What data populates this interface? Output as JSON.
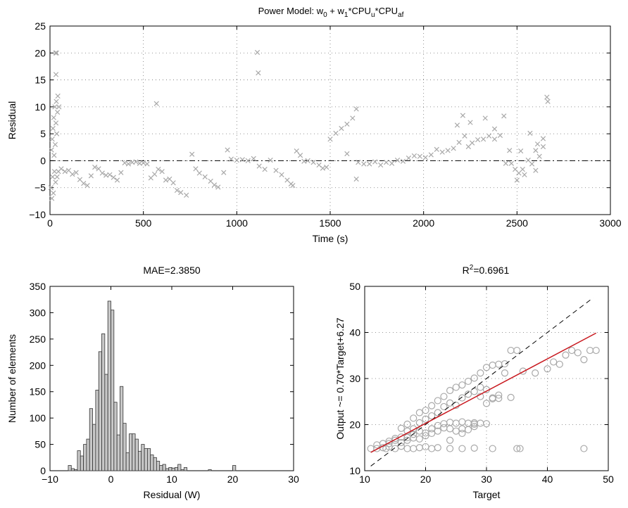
{
  "chart_data": [
    {
      "type": "scatter",
      "title_main": "Power Model: w",
      "title_sub0": "0",
      "title_mid": " + w",
      "title_sub1": "1",
      "title_mid2": "*CPU",
      "title_sub2": "u",
      "title_mid3": "*CPU",
      "title_sub3": "af",
      "xlabel": "Time (s)",
      "ylabel": "Residual",
      "xlim": [
        0,
        3000
      ],
      "ylim": [
        -10,
        25
      ],
      "xticks": [
        "0",
        "500",
        "1000",
        "1500",
        "2000",
        "2500",
        "3000"
      ],
      "yticks": [
        "−10",
        "−5",
        "0",
        "5",
        "10",
        "15",
        "20",
        "25"
      ],
      "grid": true,
      "marker": "x",
      "color": "#a8a8a8",
      "reference_line_y": 0,
      "points": [
        [
          5,
          -5
        ],
        [
          8,
          2
        ],
        [
          10,
          -7
        ],
        [
          12,
          4
        ],
        [
          14,
          -3
        ],
        [
          16,
          6
        ],
        [
          18,
          -6
        ],
        [
          20,
          8
        ],
        [
          22,
          1
        ],
        [
          24,
          -2
        ],
        [
          26,
          10
        ],
        [
          28,
          3
        ],
        [
          30,
          -4
        ],
        [
          32,
          7
        ],
        [
          34,
          11
        ],
        [
          36,
          5
        ],
        [
          38,
          -3
        ],
        [
          40,
          9
        ],
        [
          42,
          12
        ],
        [
          45,
          -2
        ],
        [
          48,
          10
        ],
        [
          30,
          20
        ],
        [
          35,
          20
        ],
        [
          32,
          16
        ],
        [
          60,
          -1.5
        ],
        [
          80,
          -2
        ],
        [
          100,
          -1.8
        ],
        [
          120,
          -2.5
        ],
        [
          140,
          -2.2
        ],
        [
          160,
          -3.5
        ],
        [
          180,
          -4.2
        ],
        [
          200,
          -4.6
        ],
        [
          220,
          -2.8
        ],
        [
          240,
          -1.2
        ],
        [
          260,
          -1.5
        ],
        [
          280,
          -2.3
        ],
        [
          300,
          -2.7
        ],
        [
          320,
          -2.6
        ],
        [
          340,
          -3.1
        ],
        [
          360,
          -3.6
        ],
        [
          380,
          -2.2
        ],
        [
          400,
          -0.4
        ],
        [
          420,
          -0.6
        ],
        [
          440,
          -0.3
        ],
        [
          460,
          -0.2
        ],
        [
          480,
          -0.5
        ],
        [
          500,
          -0.4
        ],
        [
          520,
          -0.6
        ],
        [
          540,
          -3.2
        ],
        [
          560,
          -2.5
        ],
        [
          570,
          10.6
        ],
        [
          580,
          -1.6
        ],
        [
          600,
          -2.0
        ],
        [
          620,
          -3.6
        ],
        [
          640,
          -3.4
        ],
        [
          660,
          -4.1
        ],
        [
          680,
          -5.5
        ],
        [
          700,
          -5.9
        ],
        [
          730,
          -6.4
        ],
        [
          760,
          1.2
        ],
        [
          780,
          -1.5
        ],
        [
          800,
          -2.3
        ],
        [
          830,
          -3.0
        ],
        [
          860,
          -3.8
        ],
        [
          880,
          -4.5
        ],
        [
          900,
          -4.9
        ],
        [
          930,
          -2.2
        ],
        [
          950,
          2.0
        ],
        [
          970,
          0.3
        ],
        [
          1000,
          0.1
        ],
        [
          1030,
          0.2
        ],
        [
          1060,
          0.0
        ],
        [
          1090,
          0.4
        ],
        [
          1110,
          20.1
        ],
        [
          1115,
          16.3
        ],
        [
          1120,
          -1.0
        ],
        [
          1150,
          -1.6
        ],
        [
          1180,
          0.1
        ],
        [
          1210,
          -1.8
        ],
        [
          1240,
          -2.6
        ],
        [
          1270,
          -3.6
        ],
        [
          1290,
          -4.3
        ],
        [
          1300,
          -4.6
        ],
        [
          1320,
          1.8
        ],
        [
          1340,
          1.0
        ],
        [
          1360,
          -0.1
        ],
        [
          1380,
          0.0
        ],
        [
          1410,
          -0.3
        ],
        [
          1440,
          -0.8
        ],
        [
          1460,
          -1.4
        ],
        [
          1480,
          -1.2
        ],
        [
          1500,
          4.0
        ],
        [
          1530,
          5.1
        ],
        [
          1560,
          6.0
        ],
        [
          1590,
          6.8
        ],
        [
          1620,
          7.9
        ],
        [
          1640,
          9.6
        ],
        [
          1650,
          -0.3
        ],
        [
          1680,
          -0.6
        ],
        [
          1710,
          -0.6
        ],
        [
          1740,
          -0.2
        ],
        [
          1770,
          -0.8
        ],
        [
          1800,
          -0.3
        ],
        [
          1830,
          -0.5
        ],
        [
          1860,
          0.1
        ],
        [
          1890,
          -0.1
        ],
        [
          1920,
          0.5
        ],
        [
          1950,
          0.9
        ],
        [
          1980,
          0.8
        ],
        [
          2010,
          0.6
        ],
        [
          2040,
          1.1
        ],
        [
          2070,
          2.1
        ],
        [
          2100,
          1.6
        ],
        [
          2130,
          1.9
        ],
        [
          2160,
          2.3
        ],
        [
          2190,
          3.4
        ],
        [
          2220,
          4.6
        ],
        [
          2240,
          2.6
        ],
        [
          2260,
          3.3
        ],
        [
          2290,
          3.9
        ],
        [
          2320,
          4.0
        ],
        [
          2350,
          4.6
        ],
        [
          2380,
          4.0
        ],
        [
          2410,
          4.7
        ],
        [
          2430,
          8.3
        ],
        [
          2440,
          -0.5
        ],
        [
          2470,
          -0.5
        ],
        [
          2490,
          -1.6
        ],
        [
          2510,
          -2.3
        ],
        [
          2520,
          1.8
        ],
        [
          2540,
          -2.6
        ],
        [
          2560,
          0.1
        ],
        [
          2580,
          -0.6
        ],
        [
          2600,
          -1.8
        ],
        [
          2620,
          0.8
        ],
        [
          2640,
          2.6
        ],
        [
          2660,
          11.8
        ],
        [
          2665,
          11.0
        ],
        [
          1590,
          1.3
        ],
        [
          1640,
          -3.4
        ],
        [
          2180,
          6.6
        ],
        [
          2210,
          8.4
        ],
        [
          2250,
          7.1
        ],
        [
          2330,
          7.9
        ],
        [
          2380,
          5.9
        ],
        [
          2460,
          1.9
        ],
        [
          2500,
          -3.6
        ],
        [
          2530,
          -1.6
        ],
        [
          2570,
          5.1
        ],
        [
          2600,
          1.9
        ],
        [
          2610,
          3.1
        ],
        [
          2640,
          4.1
        ]
      ]
    },
    {
      "type": "bar",
      "title": "MAE=2.3850",
      "xlabel": "Residual (W)",
      "ylabel": "Number of elements",
      "xlim": [
        -10,
        30
      ],
      "ylim": [
        0,
        350
      ],
      "xticks": [
        "−10",
        "0",
        "10",
        "20",
        "30"
      ],
      "yticks": [
        "0",
        "50",
        "100",
        "150",
        "200",
        "250",
        "300",
        "350"
      ],
      "grid": false,
      "bar_color": "#c8c8c8",
      "bin_width": 0.5,
      "bins": [
        [
          -7.0,
          10
        ],
        [
          -6.5,
          4
        ],
        [
          -6.0,
          2
        ],
        [
          -5.5,
          38
        ],
        [
          -5.0,
          28
        ],
        [
          -4.5,
          50
        ],
        [
          -4.0,
          60
        ],
        [
          -3.5,
          118
        ],
        [
          -3.0,
          88
        ],
        [
          -2.5,
          153
        ],
        [
          -2.0,
          226
        ],
        [
          -1.5,
          260
        ],
        [
          -1.0,
          183
        ],
        [
          -0.5,
          322
        ],
        [
          0.0,
          305
        ],
        [
          0.5,
          130
        ],
        [
          1.0,
          68
        ],
        [
          1.5,
          160
        ],
        [
          2.0,
          90
        ],
        [
          2.5,
          34
        ],
        [
          3.0,
          70
        ],
        [
          3.5,
          70
        ],
        [
          4.0,
          60
        ],
        [
          4.5,
          37
        ],
        [
          5.0,
          50
        ],
        [
          5.5,
          42
        ],
        [
          6.0,
          42
        ],
        [
          6.5,
          30
        ],
        [
          7.0,
          25
        ],
        [
          7.5,
          18
        ],
        [
          8.0,
          10
        ],
        [
          8.5,
          12
        ],
        [
          9.0,
          4
        ],
        [
          9.5,
          6
        ],
        [
          10.0,
          5
        ],
        [
          10.5,
          6
        ],
        [
          11.0,
          12
        ],
        [
          11.5,
          2
        ],
        [
          12.0,
          6
        ],
        [
          16.0,
          2
        ],
        [
          20.0,
          10
        ]
      ]
    },
    {
      "type": "scatter",
      "title_base": "R",
      "title_sup": "2",
      "title_rest": "=0.6961",
      "xlabel": "Target",
      "ylabel": "Output ~= 0.70*Target+6.27",
      "xlim": [
        10,
        50
      ],
      "ylim": [
        10,
        50
      ],
      "xticks": [
        "10",
        "20",
        "30",
        "40",
        "50"
      ],
      "yticks": [
        "10",
        "20",
        "30",
        "40",
        "50"
      ],
      "grid": true,
      "marker": "o",
      "marker_color": "#a8a8a8",
      "fit_line": {
        "slope": 0.7,
        "intercept": 6.27,
        "color": "#c8181e",
        "x_range": [
          11,
          48
        ]
      },
      "identity_line": {
        "x_range": [
          11,
          47.5
        ]
      },
      "points": [
        [
          11,
          14.8
        ],
        [
          12,
          14.8
        ],
        [
          13,
          15
        ],
        [
          13.5,
          14.8
        ],
        [
          14,
          15.2
        ],
        [
          15,
          14.8
        ],
        [
          16,
          15.3
        ],
        [
          17,
          14.8
        ],
        [
          18,
          14.8
        ],
        [
          19,
          15
        ],
        [
          20,
          15.2
        ],
        [
          21,
          14.8
        ],
        [
          22,
          15
        ],
        [
          24,
          14.8
        ],
        [
          26,
          14.8
        ],
        [
          28,
          14.9
        ],
        [
          31,
          14.8
        ],
        [
          35,
          14.8
        ],
        [
          35.5,
          14.8
        ],
        [
          46,
          14.8
        ],
        [
          13,
          15.9
        ],
        [
          14,
          16.4
        ],
        [
          15,
          17
        ],
        [
          16,
          17.3
        ],
        [
          17,
          17.2
        ],
        [
          18,
          17.9
        ],
        [
          19,
          18.6
        ],
        [
          20,
          18.2
        ],
        [
          21,
          19.1
        ],
        [
          22,
          19.8
        ],
        [
          23,
          20.2
        ],
        [
          24,
          20.5
        ],
        [
          25,
          20.3
        ],
        [
          26,
          20.6
        ],
        [
          27,
          20.3
        ],
        [
          28,
          20.4
        ],
        [
          29,
          20.3
        ],
        [
          17,
          20.1
        ],
        [
          18,
          21.4
        ],
        [
          19,
          22.6
        ],
        [
          20,
          23.1
        ],
        [
          21,
          24.1
        ],
        [
          22,
          25.2
        ],
        [
          23,
          26.1
        ],
        [
          24,
          27.4
        ],
        [
          25,
          28.1
        ],
        [
          26,
          28.6
        ],
        [
          27,
          29.4
        ],
        [
          28,
          30.1
        ],
        [
          29,
          31.2
        ],
        [
          30,
          32.4
        ],
        [
          31,
          32.9
        ],
        [
          32,
          33.1
        ],
        [
          33,
          33.2
        ],
        [
          16,
          19.2
        ],
        [
          17,
          18.6
        ],
        [
          18,
          19.1
        ],
        [
          19,
          20.4
        ],
        [
          20,
          21.2
        ],
        [
          21,
          21.9
        ],
        [
          22,
          22.6
        ],
        [
          23,
          23.9
        ],
        [
          24,
          24.7
        ],
        [
          25,
          24.2
        ],
        [
          26,
          25.8
        ],
        [
          27,
          26.6
        ],
        [
          28,
          27.2
        ],
        [
          29,
          26.1
        ],
        [
          30,
          24.6
        ],
        [
          31,
          25.8
        ],
        [
          32,
          26.4
        ],
        [
          24,
          16.6
        ],
        [
          26,
          18.1
        ],
        [
          28,
          19.6
        ],
        [
          30,
          20.2
        ],
        [
          31,
          25.6
        ],
        [
          32,
          25.7
        ],
        [
          33,
          31.2
        ],
        [
          34,
          36.1
        ],
        [
          35,
          36.1
        ],
        [
          36,
          31.6
        ],
        [
          38,
          31.2
        ],
        [
          40,
          32.1
        ],
        [
          41,
          33.6
        ],
        [
          42,
          33.1
        ],
        [
          43,
          35.1
        ],
        [
          44,
          36.1
        ],
        [
          45,
          35.6
        ],
        [
          46,
          34.1
        ],
        [
          47,
          36.1
        ],
        [
          48,
          36.1
        ],
        [
          12,
          15.6
        ],
        [
          14,
          15.9
        ],
        [
          15,
          16.6
        ],
        [
          16,
          16.1
        ],
        [
          17,
          16.6
        ],
        [
          18,
          17.1
        ],
        [
          19,
          16.9
        ],
        [
          20,
          17.6
        ],
        [
          21,
          18.1
        ],
        [
          22,
          18.6
        ],
        [
          23,
          19.3
        ],
        [
          24,
          19.1
        ],
        [
          25,
          18.6
        ],
        [
          26,
          19.1
        ],
        [
          27,
          18.9
        ],
        [
          28,
          20.1
        ],
        [
          29,
          28.1
        ],
        [
          30,
          27.6
        ],
        [
          34,
          25.9
        ]
      ]
    }
  ]
}
